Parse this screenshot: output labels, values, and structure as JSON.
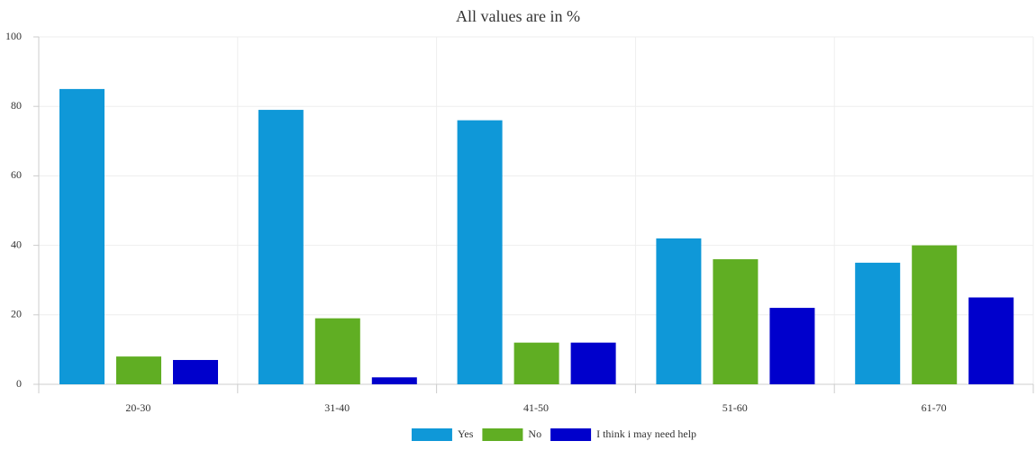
{
  "chart_data": {
    "type": "bar",
    "title": "All values are in %",
    "categories": [
      "20-30",
      "31-40",
      "41-50",
      "51-60",
      "61-70"
    ],
    "series": [
      {
        "name": "Yes",
        "color": "#0f98d8",
        "values": [
          85,
          79,
          76,
          42,
          35
        ]
      },
      {
        "name": "No",
        "color": "#60ae23",
        "values": [
          8,
          19,
          12,
          36,
          40
        ]
      },
      {
        "name": "I think i may need help",
        "color": "#0000cc",
        "values": [
          7,
          2,
          12,
          22,
          25
        ]
      }
    ],
    "ylim": [
      0,
      100
    ],
    "yticks": [
      0,
      20,
      40,
      60,
      80,
      100
    ],
    "grid": true,
    "legend": "bottom"
  }
}
